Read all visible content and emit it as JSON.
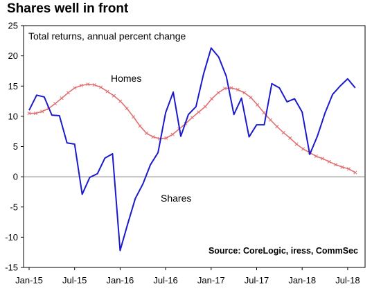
{
  "title": "Shares well in front",
  "chart_data": {
    "type": "line",
    "subtitle": "Total returns, annual percent change",
    "source": "Source: CoreLogic, iress, CommSec",
    "ylim": [
      -15,
      25
    ],
    "yticks": [
      -15,
      -10,
      -5,
      0,
      5,
      10,
      15,
      20,
      25
    ],
    "x_start": "Jan-15",
    "x_end": "Sep-18",
    "xticks": [
      "Jan-15",
      "Jul-15",
      "Jan-16",
      "Jul-16",
      "Jan-17",
      "Jul-17",
      "Jan-18",
      "Jul-18"
    ],
    "grid": false,
    "series": [
      {
        "name": "Shares",
        "color": "#1a1acc",
        "marker": "none",
        "values": [
          11.0,
          13.5,
          13.2,
          10.2,
          10.1,
          5.6,
          5.4,
          -2.9,
          -0.1,
          0.5,
          3.1,
          3.8,
          -12.2,
          -7.8,
          -3.6,
          -1.2,
          2.0,
          4.0,
          10.6,
          14.0,
          6.7,
          10.3,
          11.6,
          17.0,
          21.3,
          19.8,
          16.6,
          10.3,
          13.0,
          6.6,
          8.6,
          8.6,
          15.4,
          14.7,
          12.4,
          12.9,
          10.7,
          3.7,
          6.7,
          10.5,
          13.6,
          15.0,
          16.2,
          14.7
        ]
      },
      {
        "name": "Homes",
        "color": "#e07070",
        "marker": "cross",
        "values": [
          10.5,
          10.5,
          10.8,
          11.3,
          12.1,
          13.0,
          13.9,
          14.7,
          15.1,
          15.3,
          15.2,
          14.8,
          14.1,
          13.4,
          12.5,
          11.3,
          9.9,
          8.4,
          7.2,
          6.6,
          6.3,
          6.4,
          7.0,
          7.9,
          8.8,
          9.8,
          10.7,
          11.6,
          12.9,
          13.9,
          14.6,
          14.7,
          14.4,
          13.9,
          13.1,
          11.9,
          10.6,
          9.4,
          8.3,
          7.3,
          6.4,
          5.4,
          4.6,
          4.0,
          3.4,
          3.0,
          2.5,
          2.0,
          1.6,
          1.3,
          0.7
        ]
      }
    ]
  }
}
